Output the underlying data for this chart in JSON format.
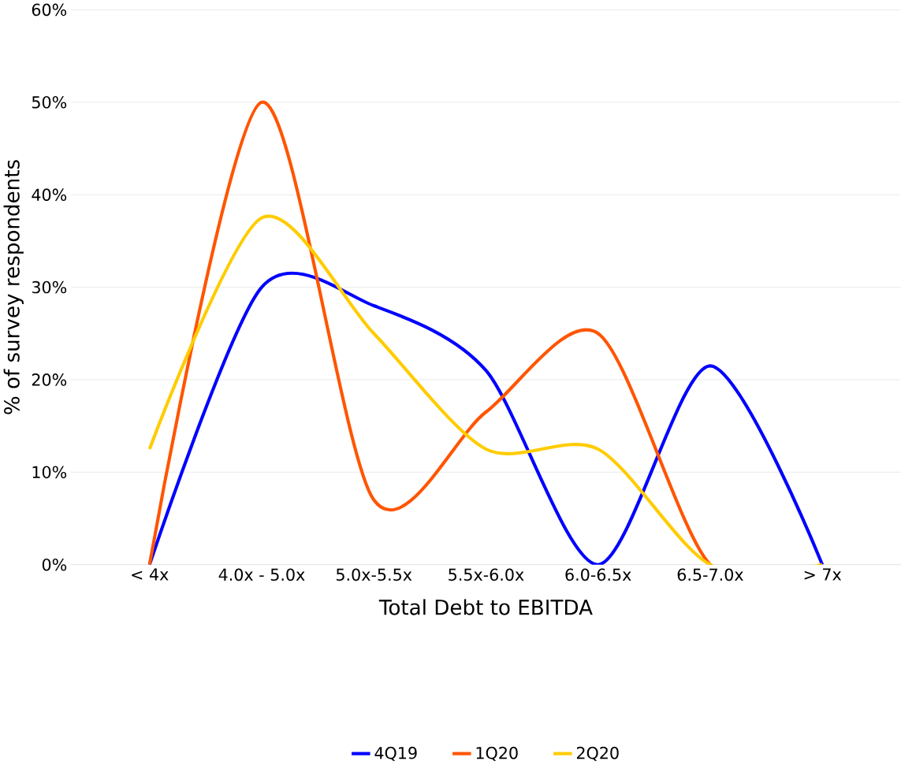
{
  "chart_data": {
    "type": "line",
    "xlabel": "Total Debt to EBITDA",
    "ylabel": "% of survey respondents",
    "categories": [
      "< 4x",
      "4.0x - 5.0x",
      "5.0x-5.5x",
      "5.5x-6.0x",
      "6.0-6.5x",
      "6.5-7.0x",
      "> 7x"
    ],
    "series": [
      {
        "name": "4Q19",
        "color": "#0000ff",
        "values": [
          0,
          30,
          28,
          21,
          0,
          21.5,
          0
        ]
      },
      {
        "name": "1Q20",
        "color": "#ff5500",
        "values": [
          0,
          50,
          7,
          16.5,
          25,
          0,
          0
        ]
      },
      {
        "name": "2Q20",
        "color": "#ffcc00",
        "values": [
          12.5,
          37.5,
          25,
          12.5,
          12.5,
          0,
          0
        ]
      }
    ],
    "ylim": [
      0,
      60
    ],
    "yticks": [
      {
        "value": 0,
        "label": "0%"
      },
      {
        "value": 10,
        "label": "10%"
      },
      {
        "value": 20,
        "label": "20%"
      },
      {
        "value": 30,
        "label": "30%"
      },
      {
        "value": 40,
        "label": "40%"
      },
      {
        "value": 50,
        "label": "50%"
      },
      {
        "value": 60,
        "label": "60%"
      }
    ],
    "grid": "y",
    "legend": "bottom",
    "marker": "none",
    "line_style": "solid"
  }
}
